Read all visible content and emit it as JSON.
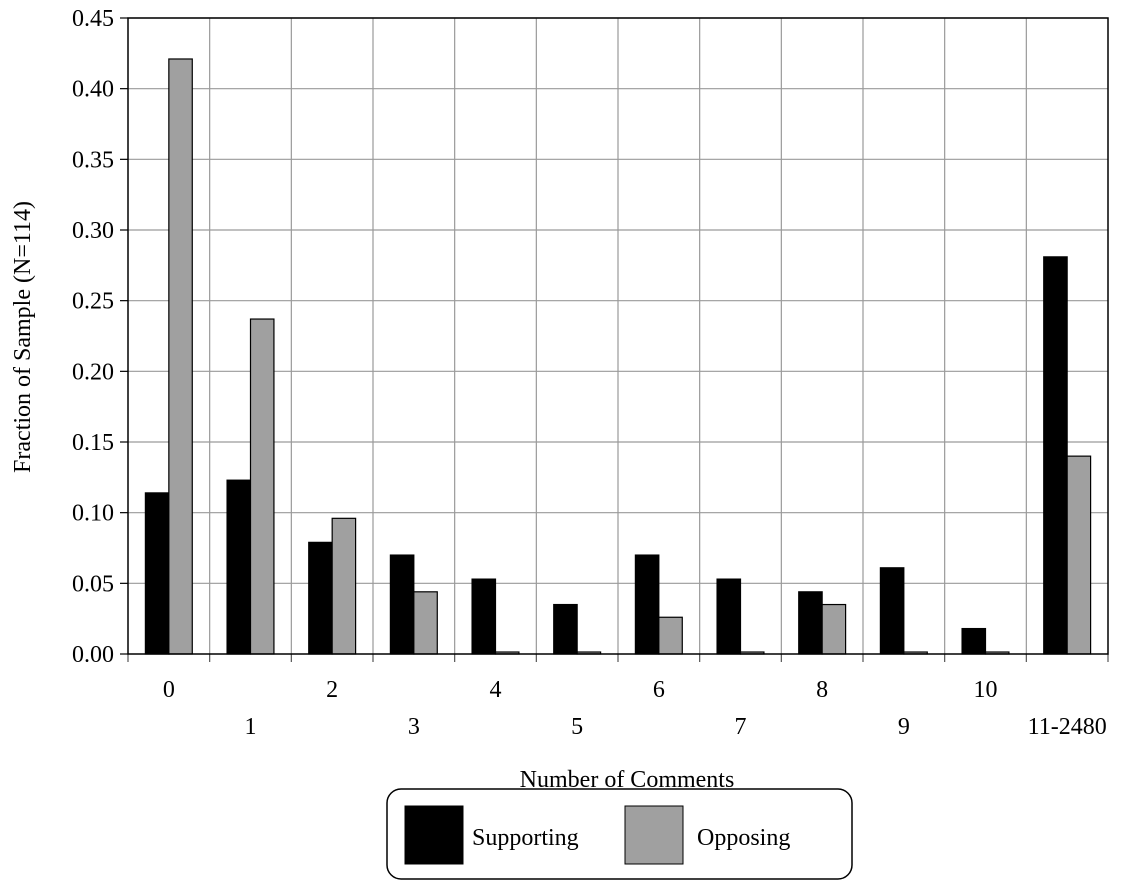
{
  "chart_data": {
    "type": "bar",
    "title": "",
    "xlabel": "Number of Comments",
    "ylabel": "Fraction of Sample (N=114)",
    "ylim": [
      0,
      0.45
    ],
    "yticks": [
      "0.00",
      "0.05",
      "0.10",
      "0.15",
      "0.20",
      "0.25",
      "0.30",
      "0.35",
      "0.40",
      "0.45"
    ],
    "categories": [
      "0",
      "1",
      "2",
      "3",
      "4",
      "5",
      "6",
      "7",
      "8",
      "9",
      "10",
      "11-2480"
    ],
    "grid": true,
    "legend_position": "bottom-center",
    "series": [
      {
        "name": "Supporting",
        "color": "#000000",
        "values": [
          0.114,
          0.123,
          0.079,
          0.07,
          0.053,
          0.035,
          0.07,
          0.053,
          0.044,
          0.061,
          0.018,
          0.281
        ]
      },
      {
        "name": "Opposing",
        "color": "#a0a0a0",
        "values": [
          0.421,
          0.237,
          0.096,
          0.044,
          0.0,
          0.0,
          0.026,
          0.0,
          0.035,
          0.0,
          0.0,
          0.14
        ]
      }
    ]
  }
}
